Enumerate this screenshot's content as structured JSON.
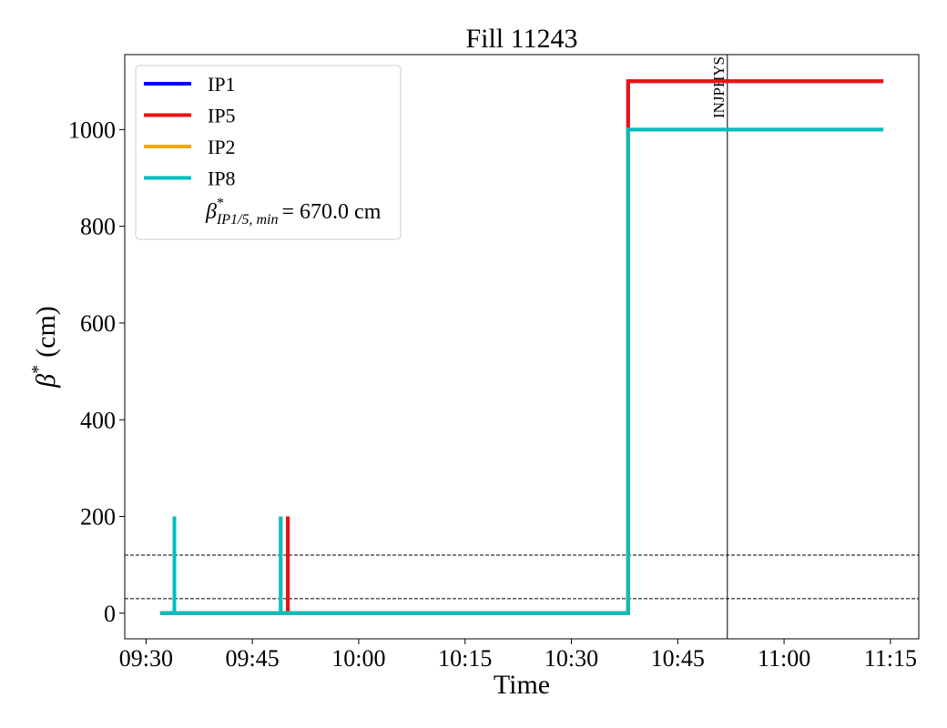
{
  "chart_data": {
    "type": "line",
    "title": "Fill 11243",
    "xlabel": "Time",
    "ylabel": {
      "symbol": "β",
      "sup": "*",
      "unit": "(cm)"
    },
    "xlim": [
      "09:27",
      "11:19"
    ],
    "xticks": [
      "09:30",
      "09:45",
      "10:00",
      "10:15",
      "10:30",
      "10:45",
      "11:00",
      "11:15"
    ],
    "ylim": [
      -53,
      1155
    ],
    "yticks": [
      0,
      200,
      400,
      600,
      800,
      1000
    ],
    "hlines": [
      120,
      30
    ],
    "vline": {
      "x": "10:52",
      "label": "INJPHYS"
    },
    "legend_position": "upper left",
    "legend_note": {
      "symbol": "β",
      "sup": "*",
      "sub": "IP1/5, min",
      "text": "= 670.0 cm"
    },
    "series": [
      {
        "name": "IP1",
        "color": "#0000ff",
        "x": [
          "09:32",
          "09:50",
          "09:50",
          "09:50",
          "10:38",
          "10:38",
          "11:14"
        ],
        "values": [
          0,
          0,
          200,
          0,
          0,
          1100,
          1100
        ]
      },
      {
        "name": "IP5",
        "color": "#ee1111",
        "x": [
          "09:32",
          "09:50",
          "09:50",
          "09:50",
          "10:38",
          "10:38",
          "11:14"
        ],
        "values": [
          0,
          0,
          200,
          0,
          0,
          1100,
          1100
        ]
      },
      {
        "name": "IP2",
        "color": "#ffa500",
        "x": [
          "09:32",
          "09:34",
          "09:34",
          "09:34",
          "09:49",
          "09:49",
          "09:49",
          "10:38",
          "10:38",
          "11:14"
        ],
        "values": [
          0,
          0,
          200,
          0,
          0,
          200,
          0,
          0,
          1000,
          1000
        ]
      },
      {
        "name": "IP8",
        "color": "#00bfbf",
        "x": [
          "09:32",
          "09:34",
          "09:34",
          "09:34",
          "09:49",
          "09:49",
          "09:49",
          "10:38",
          "10:38",
          "11:14"
        ],
        "values": [
          0,
          0,
          200,
          0,
          0,
          200,
          0,
          0,
          1000,
          1000
        ]
      }
    ]
  }
}
